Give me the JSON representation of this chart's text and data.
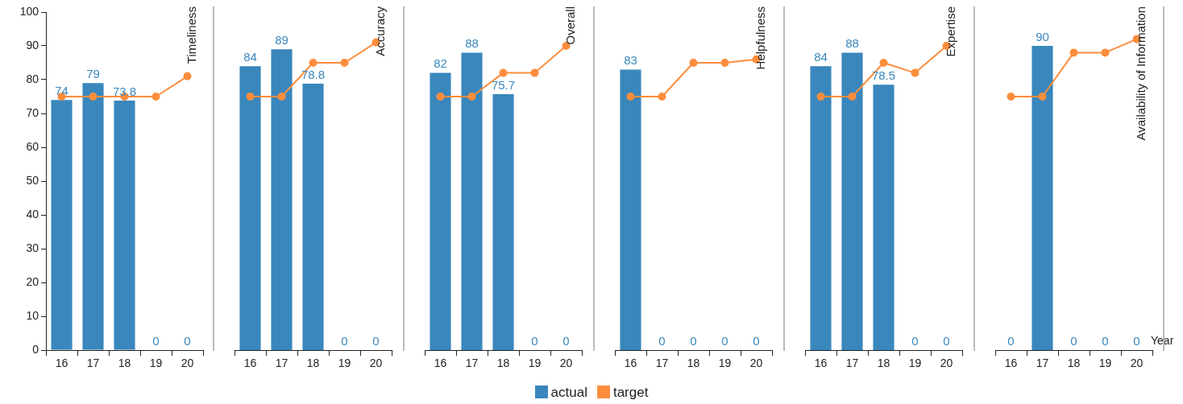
{
  "chart_data": [
    {
      "type": "bar",
      "title": "Timeliness",
      "categories": [
        "16",
        "17",
        "18",
        "19",
        "20"
      ],
      "series": [
        {
          "name": "actual",
          "type": "bar",
          "color": "#3a87bd",
          "values": [
            74,
            79,
            73.8,
            0,
            0
          ],
          "value_labels": [
            "74",
            "79",
            "73.8",
            "0",
            "0"
          ]
        },
        {
          "name": "target",
          "type": "line",
          "color": "#fd8d3c",
          "values": [
            75,
            75,
            75,
            75,
            81
          ]
        }
      ],
      "ylim": [
        0,
        100
      ],
      "yticks": [
        0,
        10,
        20,
        30,
        40,
        50,
        60,
        70,
        80,
        90,
        100
      ],
      "grid": false,
      "legend": "bottom",
      "marker": "circle",
      "line_style": "solid"
    },
    {
      "type": "bar",
      "title": "Accuracy",
      "categories": [
        "16",
        "17",
        "18",
        "19",
        "20"
      ],
      "series": [
        {
          "type": "bar",
          "color": "#3a87bd",
          "values": [
            84,
            89,
            78.8,
            0,
            0
          ],
          "value_labels": [
            "84",
            "89",
            "78.8",
            "0",
            "0"
          ]
        },
        {
          "type": "line",
          "color": "#fd8d3c",
          "values": [
            75,
            75,
            85,
            85,
            91
          ]
        }
      ],
      "ylim": [
        0,
        100
      ],
      "yticks": [
        0,
        10,
        20,
        30,
        40,
        50,
        60,
        70,
        80,
        90,
        100
      ],
      "grid": false,
      "tick_labels": "x",
      "marker": "circle",
      "line_style": "solid"
    },
    {
      "type": "bar",
      "title": "Overall",
      "categories": [
        "16",
        "17",
        "18",
        "19",
        "20"
      ],
      "series": [
        {
          "type": "bar",
          "color": "#3a87bd",
          "values": [
            82,
            88,
            75.7,
            0,
            0
          ],
          "value_labels": [
            "82",
            "88",
            "75.7",
            "0",
            "0"
          ]
        },
        {
          "type": "line",
          "color": "#fd8d3c",
          "values": [
            75,
            75,
            82,
            82,
            90
          ]
        }
      ],
      "ylim": [
        0,
        100
      ],
      "yticks": [
        0,
        10,
        20,
        30,
        40,
        50,
        60,
        70,
        80,
        90,
        100
      ],
      "grid": false,
      "tick_labels": "x",
      "marker": "circle",
      "line_style": "solid"
    },
    {
      "type": "bar",
      "title": "Helpfulness",
      "categories": [
        "16",
        "17",
        "18",
        "19",
        "20"
      ],
      "series": [
        {
          "type": "bar",
          "color": "#3a87bd",
          "values": [
            83,
            0,
            0,
            0,
            0
          ],
          "value_labels": [
            "83",
            "0",
            "0",
            "0",
            "0"
          ]
        },
        {
          "type": "line",
          "color": "#fd8d3c",
          "values": [
            75,
            75,
            85,
            85,
            86
          ]
        }
      ],
      "ylim": [
        0,
        100
      ],
      "yticks": [
        0,
        10,
        20,
        30,
        40,
        50,
        60,
        70,
        80,
        90,
        100
      ],
      "grid": false,
      "tick_labels": "x",
      "marker": "circle",
      "line_style": "solid"
    },
    {
      "type": "bar",
      "title": "Expertise",
      "categories": [
        "16",
        "17",
        "18",
        "19",
        "20"
      ],
      "series": [
        {
          "type": "bar",
          "color": "#3a87bd",
          "values": [
            84,
            88,
            78.5,
            0,
            0
          ],
          "value_labels": [
            "84",
            "88",
            "78.5",
            "0",
            "0"
          ]
        },
        {
          "type": "line",
          "color": "#fd8d3c",
          "values": [
            75,
            75,
            85,
            82,
            90
          ]
        }
      ],
      "ylim": [
        0,
        100
      ],
      "yticks": [
        0,
        10,
        20,
        30,
        40,
        50,
        60,
        70,
        80,
        90,
        100
      ],
      "grid": false,
      "tick_labels": "x",
      "marker": "circle",
      "line_style": "solid"
    },
    {
      "type": "bar",
      "title": "Availability of Information",
      "xlabel": "Year",
      "categories": [
        "16",
        "17",
        "18",
        "19",
        "20"
      ],
      "series": [
        {
          "type": "bar",
          "color": "#3a87bd",
          "values": [
            0,
            90,
            0,
            0,
            0
          ],
          "value_labels": [
            "0",
            "90",
            "0",
            "0",
            "0"
          ]
        },
        {
          "type": "line",
          "color": "#fd8d3c",
          "values": [
            75,
            75,
            88,
            88,
            92
          ]
        }
      ],
      "ylim": [
        0,
        100
      ],
      "yticks": [
        0,
        10,
        20,
        30,
        40,
        50,
        60,
        70,
        80,
        90,
        100
      ],
      "grid": false,
      "tick_labels": "x",
      "marker": "circle",
      "line_style": "solid"
    }
  ]
}
